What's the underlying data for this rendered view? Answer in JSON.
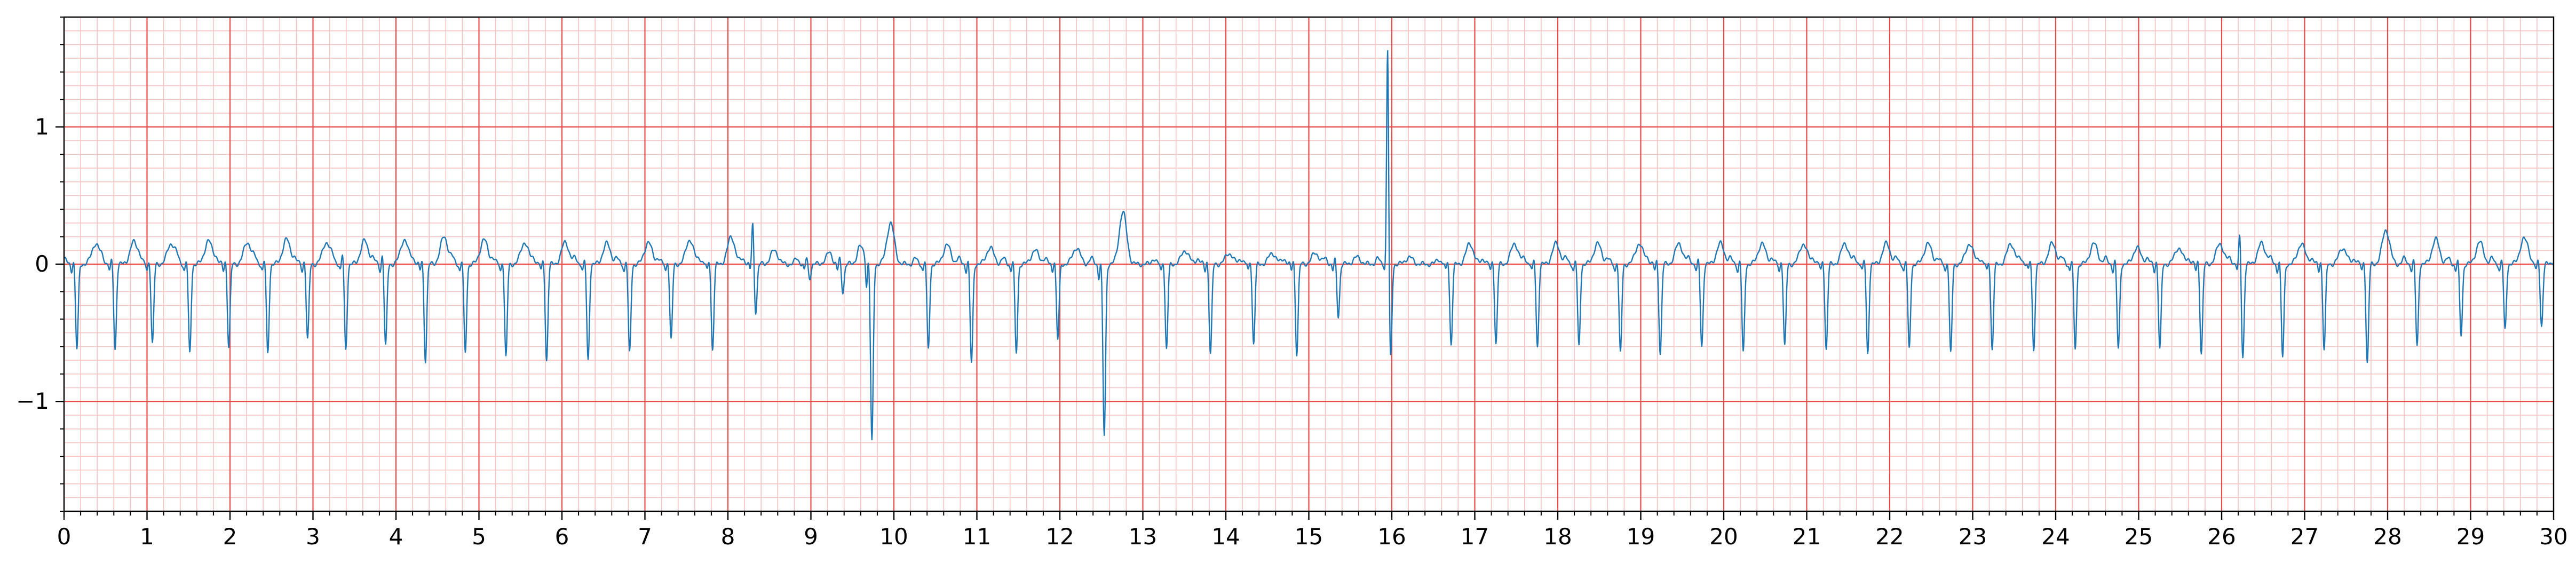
{
  "chart_data": {
    "type": "line",
    "title": "",
    "xlabel": "",
    "ylabel": "",
    "xlim": [
      0,
      30
    ],
    "ylim": [
      -1.8,
      1.8
    ],
    "x_ticks": [
      0,
      1,
      2,
      3,
      4,
      5,
      6,
      7,
      8,
      9,
      10,
      11,
      12,
      13,
      14,
      15,
      16,
      17,
      18,
      19,
      20,
      21,
      22,
      23,
      24,
      25,
      26,
      27,
      28,
      29,
      30
    ],
    "x_tick_labels": [
      "0",
      "1",
      "2",
      "3",
      "4",
      "5",
      "6",
      "7",
      "8",
      "9",
      "10",
      "11",
      "12",
      "13",
      "14",
      "15",
      "16",
      "17",
      "18",
      "19",
      "20",
      "21",
      "22",
      "23",
      "24",
      "25",
      "26",
      "27",
      "28",
      "29",
      "30"
    ],
    "y_ticks": [
      -1,
      0,
      1
    ],
    "y_tick_labels": [
      "−1",
      "0",
      "1"
    ],
    "grid": {
      "style": "ecg-paper",
      "major_x_step": 1,
      "minor_x_step": 0.2,
      "major_y_step": 1,
      "minor_y_step": 0.1,
      "major_color": "#e84a4a",
      "minor_color": "#f7c2c2"
    },
    "line_color": "#1f77b4",
    "series": [
      {
        "beats": [
          {
            "t": 0.12,
            "q": -0.05,
            "r": 0.05,
            "s": -0.62,
            "t_wave": 0.15
          },
          {
            "t": 0.58,
            "q": -0.05,
            "r": 0.05,
            "s": -0.62,
            "t_wave": 0.16
          },
          {
            "t": 1.03,
            "q": -0.05,
            "r": 0.05,
            "s": -0.58,
            "t_wave": 0.15
          },
          {
            "t": 1.48,
            "q": -0.05,
            "r": 0.05,
            "s": -0.65,
            "t_wave": 0.17
          },
          {
            "t": 1.95,
            "q": -0.05,
            "r": 0.05,
            "s": -0.6,
            "t_wave": 0.16
          },
          {
            "t": 2.42,
            "q": -0.05,
            "r": 0.05,
            "s": -0.65,
            "t_wave": 0.18
          },
          {
            "t": 2.9,
            "q": -0.05,
            "r": 0.05,
            "s": -0.55,
            "t_wave": 0.16
          },
          {
            "t": 3.36,
            "q": -0.05,
            "r": 0.1,
            "s": -0.62,
            "t_wave": 0.17
          },
          {
            "t": 3.84,
            "q": -0.05,
            "r": 0.1,
            "s": -0.6,
            "t_wave": 0.18
          },
          {
            "t": 4.32,
            "q": -0.05,
            "r": 0.05,
            "s": -0.7,
            "t_wave": 0.2
          },
          {
            "t": 4.8,
            "q": -0.05,
            "r": 0.05,
            "s": -0.65,
            "t_wave": 0.18
          },
          {
            "t": 5.29,
            "q": -0.05,
            "r": 0.05,
            "s": -0.68,
            "t_wave": 0.16
          },
          {
            "t": 5.78,
            "q": -0.05,
            "r": 0.05,
            "s": -0.7,
            "t_wave": 0.16
          },
          {
            "t": 6.28,
            "q": -0.05,
            "r": 0.05,
            "s": -0.7,
            "t_wave": 0.15
          },
          {
            "t": 6.78,
            "q": -0.05,
            "r": 0.05,
            "s": -0.65,
            "t_wave": 0.16
          },
          {
            "t": 7.28,
            "q": -0.05,
            "r": 0.05,
            "s": -0.55,
            "t_wave": 0.18
          },
          {
            "t": 7.78,
            "q": -0.05,
            "r": 0.05,
            "s": -0.62,
            "t_wave": 0.2
          },
          {
            "t": 8.3,
            "q": -0.05,
            "r": 0.32,
            "s": -0.35,
            "t_wave": 0.1
          },
          {
            "t": 8.95,
            "q": -0.05,
            "r": 0.05,
            "s": -0.1,
            "t_wave": 0.05
          },
          {
            "t": 9.35,
            "q": -0.05,
            "r": 0.05,
            "s": -0.2,
            "t_wave": 0.1
          },
          {
            "t": 9.7,
            "q": -0.2,
            "r": 0.05,
            "s": -1.3,
            "t_wave": 0.3
          },
          {
            "t": 10.38,
            "q": -0.05,
            "r": 0.05,
            "s": -0.62,
            "t_wave": 0.14
          },
          {
            "t": 10.9,
            "q": -0.05,
            "r": 0.05,
            "s": -0.72,
            "t_wave": 0.12
          },
          {
            "t": 11.44,
            "q": -0.05,
            "r": 0.05,
            "s": -0.65,
            "t_wave": 0.1
          },
          {
            "t": 11.94,
            "q": -0.05,
            "r": 0.05,
            "s": -0.55,
            "t_wave": 0.12
          },
          {
            "t": 12.5,
            "q": -0.1,
            "r": 0.05,
            "s": -1.25,
            "t_wave": 0.38
          },
          {
            "t": 13.25,
            "q": -0.05,
            "r": 0.05,
            "s": -0.62,
            "t_wave": 0.1
          },
          {
            "t": 13.78,
            "q": -0.05,
            "r": 0.05,
            "s": -0.65,
            "t_wave": 0.08
          },
          {
            "t": 14.3,
            "q": -0.05,
            "r": 0.05,
            "s": -0.58,
            "t_wave": 0.08
          },
          {
            "t": 14.82,
            "q": -0.05,
            "r": 0.05,
            "s": -0.65,
            "t_wave": 0.08
          },
          {
            "t": 15.32,
            "q": -0.05,
            "r": 0.05,
            "s": -0.38,
            "t_wave": 0.05
          },
          {
            "t": 15.95,
            "q": -0.05,
            "r": 1.62,
            "s": -0.7,
            "t_wave": 0.05
          },
          {
            "t": 16.68,
            "q": -0.05,
            "r": 0.05,
            "s": -0.58,
            "t_wave": 0.15
          },
          {
            "t": 17.22,
            "q": -0.05,
            "r": 0.05,
            "s": -0.58,
            "t_wave": 0.15
          },
          {
            "t": 17.72,
            "q": -0.05,
            "r": 0.05,
            "s": -0.6,
            "t_wave": 0.15
          },
          {
            "t": 18.22,
            "q": -0.05,
            "r": 0.05,
            "s": -0.6,
            "t_wave": 0.15
          },
          {
            "t": 18.72,
            "q": -0.05,
            "r": 0.05,
            "s": -0.65,
            "t_wave": 0.15
          },
          {
            "t": 19.2,
            "q": -0.05,
            "r": 0.05,
            "s": -0.65,
            "t_wave": 0.15
          },
          {
            "t": 19.7,
            "q": -0.05,
            "r": 0.05,
            "s": -0.6,
            "t_wave": 0.15
          },
          {
            "t": 20.2,
            "q": -0.05,
            "r": 0.05,
            "s": -0.65,
            "t_wave": 0.15
          },
          {
            "t": 20.7,
            "q": -0.05,
            "r": 0.05,
            "s": -0.6,
            "t_wave": 0.15
          },
          {
            "t": 21.2,
            "q": -0.05,
            "r": 0.05,
            "s": -0.62,
            "t_wave": 0.15
          },
          {
            "t": 21.7,
            "q": -0.05,
            "r": 0.05,
            "s": -0.65,
            "t_wave": 0.15
          },
          {
            "t": 22.2,
            "q": -0.05,
            "r": 0.05,
            "s": -0.62,
            "t_wave": 0.15
          },
          {
            "t": 22.7,
            "q": -0.05,
            "r": 0.05,
            "s": -0.65,
            "t_wave": 0.15
          },
          {
            "t": 23.2,
            "q": -0.05,
            "r": 0.05,
            "s": -0.62,
            "t_wave": 0.15
          },
          {
            "t": 23.7,
            "q": -0.05,
            "r": 0.05,
            "s": -0.62,
            "t_wave": 0.15
          },
          {
            "t": 24.2,
            "q": -0.05,
            "r": 0.05,
            "s": -0.62,
            "t_wave": 0.15
          },
          {
            "t": 24.72,
            "q": -0.05,
            "r": 0.05,
            "s": -0.62,
            "t_wave": 0.12
          },
          {
            "t": 25.22,
            "q": -0.05,
            "r": 0.05,
            "s": -0.62,
            "t_wave": 0.12
          },
          {
            "t": 25.72,
            "q": -0.05,
            "r": 0.05,
            "s": -0.65,
            "t_wave": 0.15
          },
          {
            "t": 26.22,
            "q": -0.05,
            "r": 0.25,
            "s": -0.68,
            "t_wave": 0.15
          },
          {
            "t": 26.7,
            "q": -0.05,
            "r": 0.05,
            "s": -0.68,
            "t_wave": 0.15
          },
          {
            "t": 27.2,
            "q": -0.05,
            "r": 0.05,
            "s": -0.62,
            "t_wave": 0.12
          },
          {
            "t": 27.72,
            "q": -0.05,
            "r": 0.05,
            "s": -0.72,
            "t_wave": 0.25
          },
          {
            "t": 28.32,
            "q": -0.05,
            "r": 0.05,
            "s": -0.6,
            "t_wave": 0.18
          },
          {
            "t": 28.85,
            "q": -0.05,
            "r": 0.05,
            "s": -0.52,
            "t_wave": 0.16
          },
          {
            "t": 29.38,
            "q": -0.05,
            "r": 0.05,
            "s": -0.48,
            "t_wave": 0.18
          },
          {
            "t": 29.82,
            "q": -0.05,
            "r": 0.05,
            "s": -0.45,
            "t_wave": 0.15
          }
        ]
      }
    ]
  }
}
